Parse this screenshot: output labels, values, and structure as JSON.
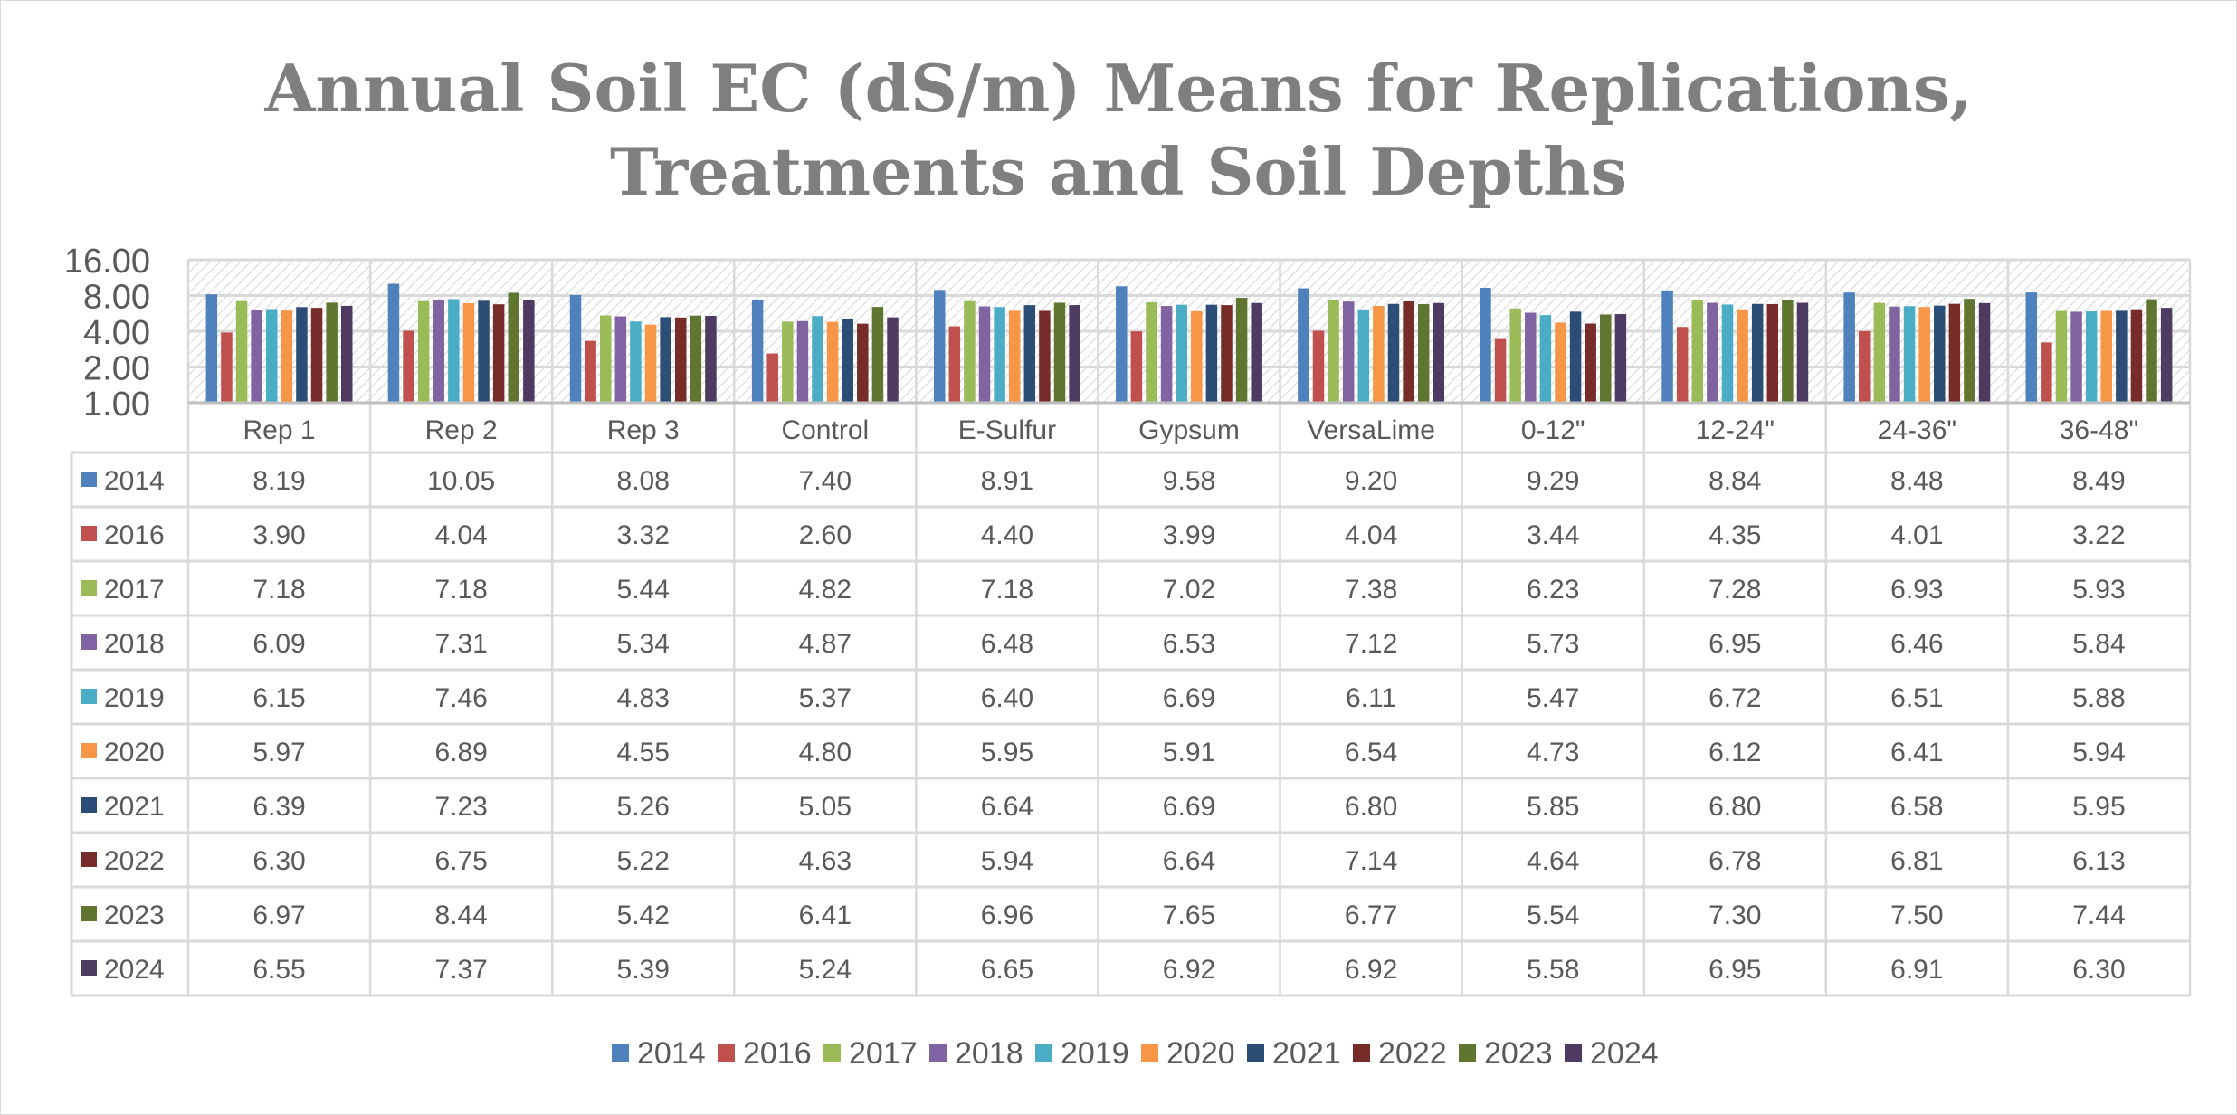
{
  "chart_data": {
    "type": "bar",
    "title": "Annual Soil EC (dS/m) Means for Replications, Treatments and Soil Depths",
    "title_lines": [
      "Annual Soil EC (dS/m) Means for Replications,",
      "Treatments and Soil Depths"
    ],
    "xlabel": "",
    "ylabel": "",
    "y_scale": "log2",
    "ylim": [
      1,
      16
    ],
    "y_ticks": [
      "1.00",
      "2.00",
      "4.00",
      "8.00",
      "16.00"
    ],
    "grid": true,
    "legend_position": "bottom",
    "data_table": true,
    "categories": [
      "Rep 1",
      "Rep 2",
      "Rep 3",
      "Control",
      "E-Sulfur",
      "Gypsum",
      "VersaLime",
      "0-12\"",
      "12-24\"",
      "24-36\"",
      "36-48\""
    ],
    "series": [
      {
        "name": "2014",
        "color": "#4f81bd",
        "values": [
          8.19,
          10.05,
          8.08,
          7.4,
          8.91,
          9.58,
          9.2,
          9.29,
          8.84,
          8.48,
          8.49
        ]
      },
      {
        "name": "2016",
        "color": "#c0504d",
        "values": [
          3.9,
          4.04,
          3.32,
          2.6,
          4.4,
          3.99,
          4.04,
          3.44,
          4.35,
          4.01,
          3.22
        ]
      },
      {
        "name": "2017",
        "color": "#9bbb59",
        "values": [
          7.18,
          7.18,
          5.44,
          4.82,
          7.18,
          7.02,
          7.38,
          6.23,
          7.28,
          6.93,
          5.93
        ]
      },
      {
        "name": "2018",
        "color": "#8064a2",
        "values": [
          6.09,
          7.31,
          5.34,
          4.87,
          6.48,
          6.53,
          7.12,
          5.73,
          6.95,
          6.46,
          5.84
        ]
      },
      {
        "name": "2019",
        "color": "#4bacc6",
        "values": [
          6.15,
          7.46,
          4.83,
          5.37,
          6.4,
          6.69,
          6.11,
          5.47,
          6.72,
          6.51,
          5.88
        ]
      },
      {
        "name": "2020",
        "color": "#f79646",
        "values": [
          5.97,
          6.89,
          4.55,
          4.8,
          5.95,
          5.91,
          6.54,
          4.73,
          6.12,
          6.41,
          5.94
        ]
      },
      {
        "name": "2021",
        "color": "#2c4d75",
        "values": [
          6.39,
          7.23,
          5.26,
          5.05,
          6.64,
          6.69,
          6.8,
          5.85,
          6.8,
          6.58,
          5.95
        ]
      },
      {
        "name": "2022",
        "color": "#772c2a",
        "values": [
          6.3,
          6.75,
          5.22,
          4.63,
          5.94,
          6.64,
          7.14,
          4.64,
          6.78,
          6.81,
          6.13
        ]
      },
      {
        "name": "2023",
        "color": "#5f7530",
        "values": [
          6.97,
          8.44,
          5.42,
          6.41,
          6.96,
          7.65,
          6.77,
          5.54,
          7.3,
          7.5,
          7.44
        ]
      },
      {
        "name": "2024",
        "color": "#4d3b62",
        "values": [
          6.55,
          7.37,
          5.39,
          5.24,
          6.65,
          6.92,
          6.92,
          5.58,
          6.95,
          6.91,
          6.3
        ]
      }
    ]
  }
}
